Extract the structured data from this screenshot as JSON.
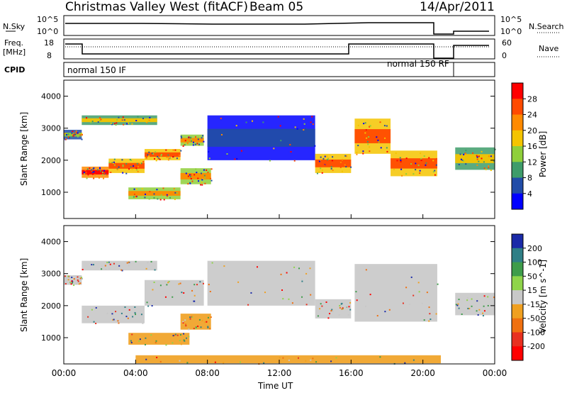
{
  "header": {
    "station": "Christmas Valley West (fitACF)",
    "beam": "Beam 05",
    "date": "14/Apr/2011"
  },
  "strips": {
    "nsky_label": "N.Sky",
    "nsky_ticks": [
      "10^5",
      "10^0"
    ],
    "nsearch_label": "N.Search",
    "nsearch_ticks": [
      "10^5",
      "10^0"
    ],
    "freq_label_1": "Freq.",
    "freq_label_2": "[MHz]",
    "freq_ticks": [
      "18",
      "8"
    ],
    "nave_label": "Nave",
    "nave_ticks": [
      "60",
      "0"
    ],
    "cpid_label": "CPID",
    "cpid_left": "normal 150 IF",
    "cpid_right": "normal 150 RF"
  },
  "chart_data": [
    {
      "type": "heatmap",
      "panel": "power",
      "ylabel": "Slant Range [km]",
      "yticks": [
        "1000",
        "2000",
        "3000",
        "4000"
      ],
      "ylim": [
        180,
        4500
      ],
      "xlim": [
        0,
        24
      ],
      "colorbar_label": "Power [dB]",
      "colorbar_ticks": [
        "28",
        "24",
        "20",
        "16",
        "12",
        "8",
        "4"
      ],
      "colorbar_colors": [
        "#ff0000",
        "#ff4a00",
        "#ff8a00",
        "#f4c400",
        "#8fcf3a",
        "#3e9c6a",
        "#214ca8",
        "#0000ff"
      ],
      "bands": [
        {
          "x": [
            0.0,
            1.0
          ],
          "y": [
            2650,
            2950
          ],
          "level": 0.45
        },
        {
          "x": [
            1.0,
            5.2
          ],
          "y": [
            3100,
            3400
          ],
          "level": 0.55
        },
        {
          "x": [
            1.0,
            2.5
          ],
          "y": [
            1450,
            1800
          ],
          "level": 0.95
        },
        {
          "x": [
            2.5,
            4.5
          ],
          "y": [
            1600,
            2050
          ],
          "level": 0.92
        },
        {
          "x": [
            4.5,
            6.5
          ],
          "y": [
            2000,
            2350
          ],
          "level": 0.9
        },
        {
          "x": [
            6.5,
            7.8
          ],
          "y": [
            2450,
            2800
          ],
          "level": 0.7
        },
        {
          "x": [
            3.6,
            6.5
          ],
          "y": [
            780,
            1150
          ],
          "level": 0.65
        },
        {
          "x": [
            6.5,
            8.2
          ],
          "y": [
            1250,
            1750
          ],
          "level": 0.7
        },
        {
          "x": [
            8.0,
            14.0
          ],
          "y": [
            2000,
            3400
          ],
          "level": 0.1
        },
        {
          "x": [
            14.0,
            16.0
          ],
          "y": [
            1600,
            2200
          ],
          "level": 0.8
        },
        {
          "x": [
            16.2,
            18.2
          ],
          "y": [
            2200,
            3300
          ],
          "level": 0.85
        },
        {
          "x": [
            18.2,
            20.8
          ],
          "y": [
            1500,
            2300
          ],
          "level": 0.85
        },
        {
          "x": [
            21.8,
            24.0
          ],
          "y": [
            1700,
            2400
          ],
          "level": 0.6
        }
      ]
    },
    {
      "type": "heatmap",
      "panel": "velocity",
      "ylabel": "Slant Range [km]",
      "yticks": [
        "1000",
        "2000",
        "3000",
        "4000"
      ],
      "ylim": [
        180,
        4500
      ],
      "xlim": [
        0,
        24
      ],
      "xticks": [
        "00:00",
        "04:00",
        "08:00",
        "12:00",
        "16:00",
        "20:00",
        "00:00"
      ],
      "xlabel": "Time UT",
      "colorbar_label": "Velocity [m s^-1]",
      "colorbar_ticks": [
        "200",
        "100",
        "50",
        "15",
        "-15",
        "-50",
        "-100",
        "-200"
      ],
      "colorbar_colors": [
        "#1a2aa8",
        "#2f7f86",
        "#3e9c4a",
        "#8fd44a",
        "#c8c8c8",
        "#f0a020",
        "#f07010",
        "#e83020",
        "#ff0000"
      ],
      "bands": [
        {
          "x": [
            0.0,
            1.0
          ],
          "y": [
            2650,
            2950
          ],
          "vel": "ground"
        },
        {
          "x": [
            1.0,
            5.2
          ],
          "y": [
            3100,
            3400
          ],
          "vel": "ground"
        },
        {
          "x": [
            1.0,
            4.5
          ],
          "y": [
            1450,
            2000
          ],
          "vel": "ground"
        },
        {
          "x": [
            4.5,
            7.8
          ],
          "y": [
            2000,
            2800
          ],
          "vel": "ground"
        },
        {
          "x": [
            3.6,
            7.0
          ],
          "y": [
            780,
            1150
          ],
          "vel": "neg"
        },
        {
          "x": [
            6.5,
            8.2
          ],
          "y": [
            1250,
            1750
          ],
          "vel": "neg"
        },
        {
          "x": [
            8.0,
            14.0
          ],
          "y": [
            2000,
            3400
          ],
          "vel": "ground"
        },
        {
          "x": [
            14.0,
            16.0
          ],
          "y": [
            1600,
            2200
          ],
          "vel": "ground"
        },
        {
          "x": [
            16.2,
            20.8
          ],
          "y": [
            1500,
            3300
          ],
          "vel": "ground"
        },
        {
          "x": [
            21.8,
            24.0
          ],
          "y": [
            1700,
            2400
          ],
          "vel": "ground"
        },
        {
          "x": [
            4.0,
            21.0
          ],
          "y": [
            200,
            450
          ],
          "vel": "neg"
        }
      ]
    }
  ]
}
